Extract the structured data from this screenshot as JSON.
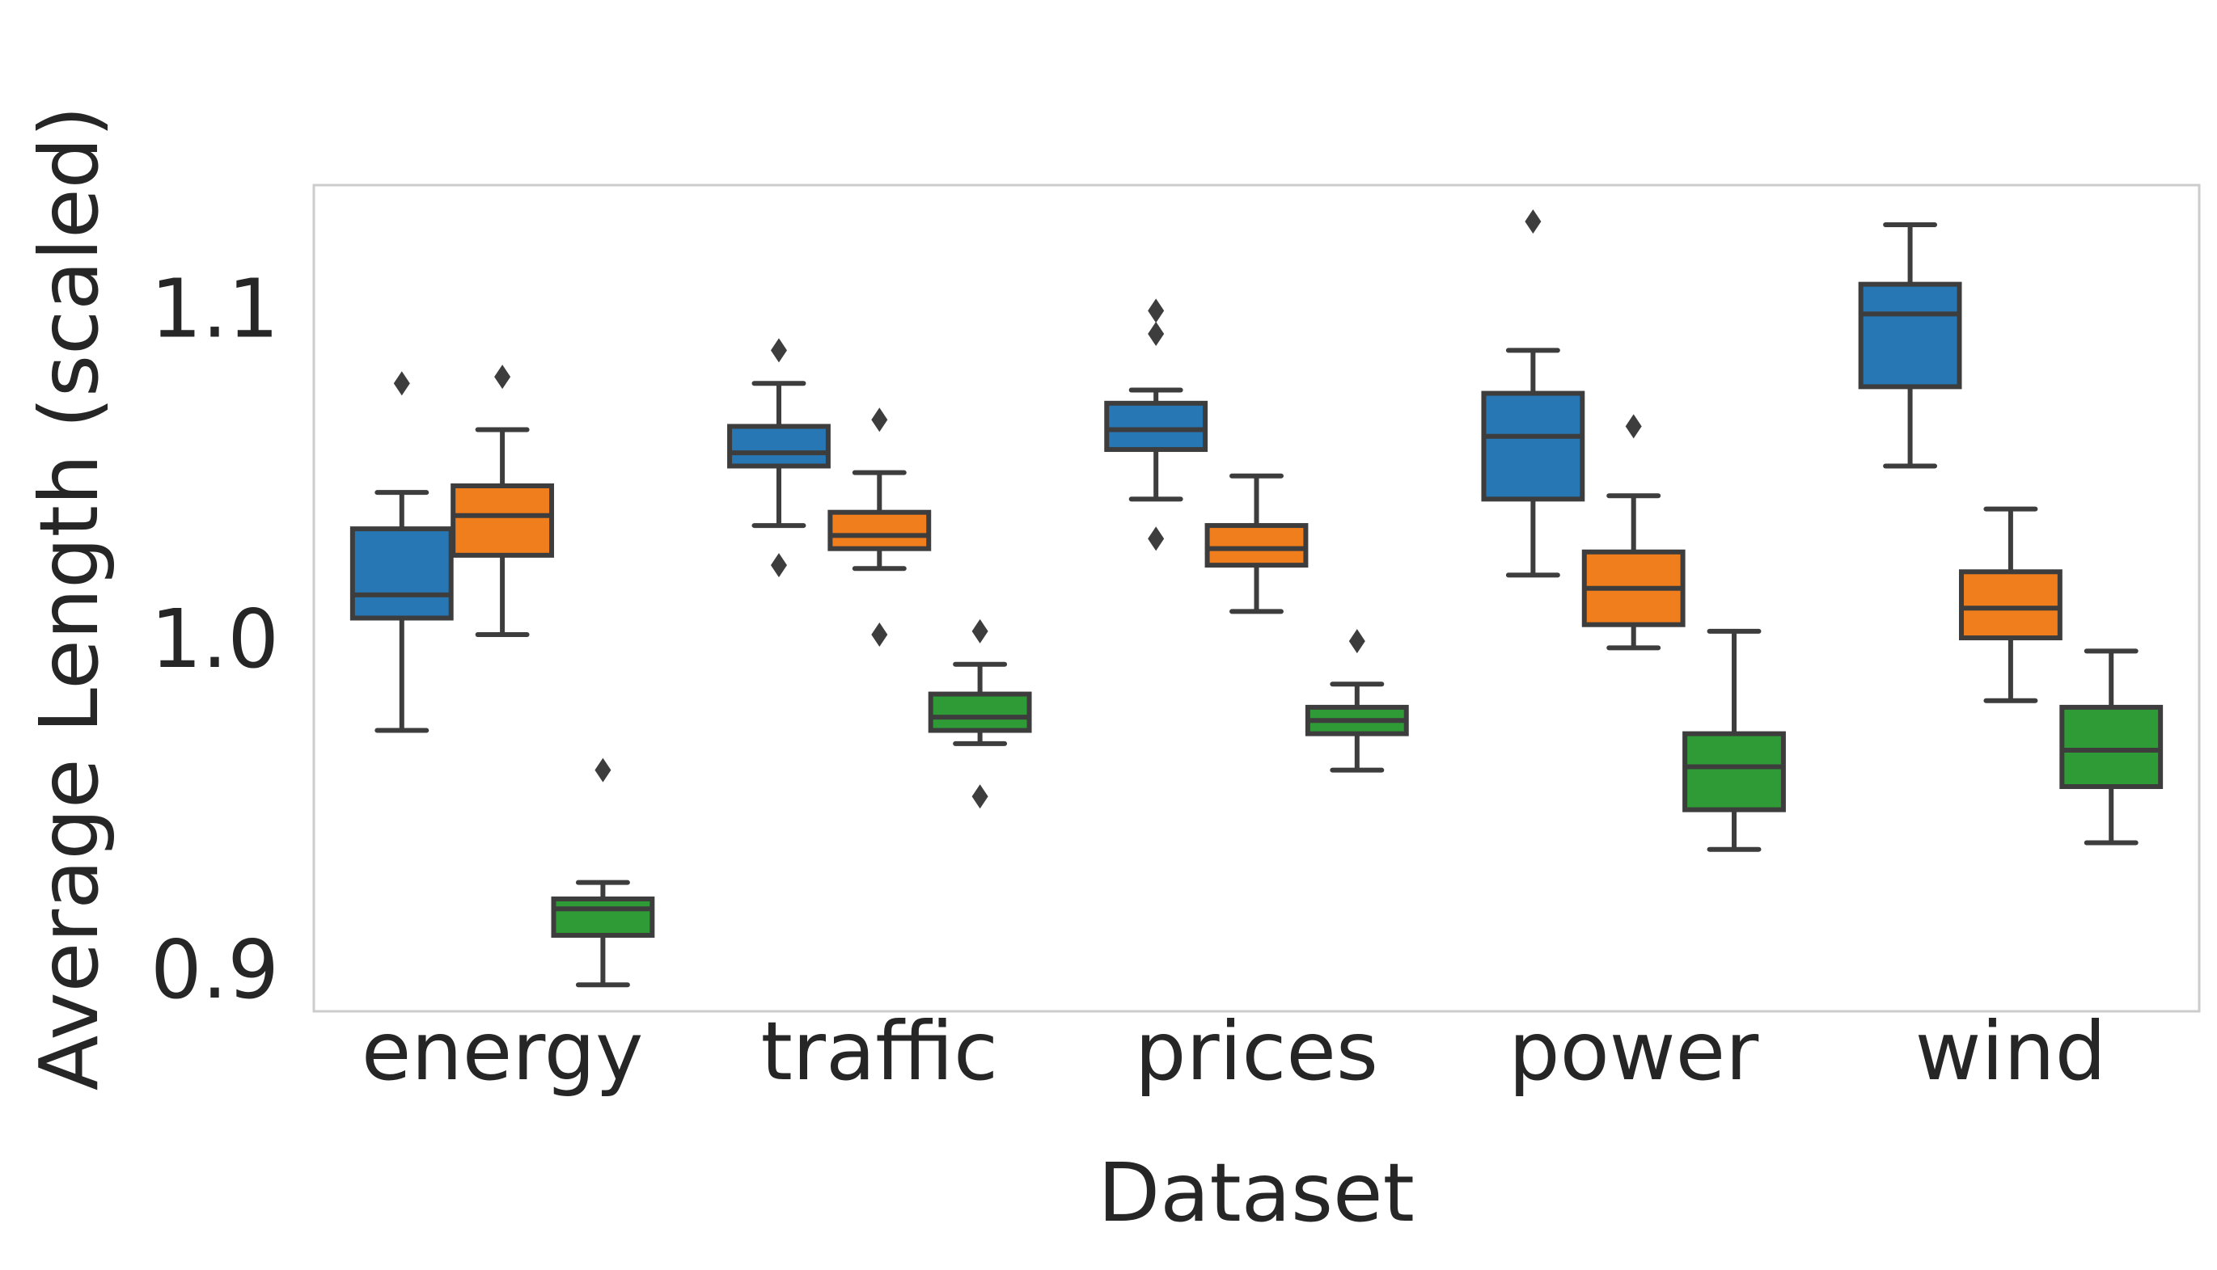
{
  "chart_data": {
    "type": "box",
    "xlabel": "Dataset",
    "ylabel": "Average Length (scaled)",
    "ylim": [
      0.887,
      1.137
    ],
    "yticks": [
      "0.9",
      "1.0",
      "1.1"
    ],
    "categories": [
      "energy",
      "traffic",
      "prices",
      "power",
      "wind"
    ],
    "grid": false,
    "colors": [
      "#2677b4",
      "#f07e1d",
      "#2e9b36"
    ],
    "edge_color": "#3d3d3d",
    "series": [
      {
        "color": "#2677b4",
        "boxes": [
          {
            "whislo": 0.972,
            "q1": 1.006,
            "med": 1.013,
            "q3": 1.033,
            "whishi": 1.044,
            "fliers": [
              1.077
            ]
          },
          {
            "whislo": 1.034,
            "q1": 1.052,
            "med": 1.056,
            "q3": 1.064,
            "whishi": 1.077,
            "fliers": [
              1.022,
              1.087
            ]
          },
          {
            "whislo": 1.042,
            "q1": 1.057,
            "med": 1.063,
            "q3": 1.071,
            "whishi": 1.075,
            "fliers": [
              1.03,
              1.092,
              1.099
            ]
          },
          {
            "whislo": 1.019,
            "q1": 1.042,
            "med": 1.061,
            "q3": 1.074,
            "whishi": 1.087,
            "fliers": [
              1.126
            ]
          },
          {
            "whislo": 1.052,
            "q1": 1.076,
            "med": 1.098,
            "q3": 1.107,
            "whishi": 1.125,
            "fliers": []
          }
        ]
      },
      {
        "color": "#f07e1d",
        "boxes": [
          {
            "whislo": 1.001,
            "q1": 1.025,
            "med": 1.037,
            "q3": 1.046,
            "whishi": 1.063,
            "fliers": [
              1.079
            ]
          },
          {
            "whislo": 1.021,
            "q1": 1.027,
            "med": 1.031,
            "q3": 1.038,
            "whishi": 1.05,
            "fliers": [
              1.001,
              1.066
            ]
          },
          {
            "whislo": 1.008,
            "q1": 1.022,
            "med": 1.027,
            "q3": 1.034,
            "whishi": 1.049,
            "fliers": []
          },
          {
            "whislo": 0.997,
            "q1": 1.004,
            "med": 1.015,
            "q3": 1.026,
            "whishi": 1.043,
            "fliers": [
              1.064
            ]
          },
          {
            "whislo": 0.981,
            "q1": 1.0,
            "med": 1.009,
            "q3": 1.02,
            "whishi": 1.039,
            "fliers": []
          }
        ]
      },
      {
        "color": "#2e9b36",
        "boxes": [
          {
            "whislo": 0.895,
            "q1": 0.91,
            "med": 0.918,
            "q3": 0.921,
            "whishi": 0.926,
            "fliers": [
              0.96
            ]
          },
          {
            "whislo": 0.968,
            "q1": 0.972,
            "med": 0.976,
            "q3": 0.983,
            "whishi": 0.992,
            "fliers": [
              0.952,
              1.002
            ]
          },
          {
            "whislo": 0.96,
            "q1": 0.971,
            "med": 0.975,
            "q3": 0.979,
            "whishi": 0.986,
            "fliers": [
              0.999
            ]
          },
          {
            "whislo": 0.936,
            "q1": 0.948,
            "med": 0.961,
            "q3": 0.971,
            "whishi": 1.002,
            "fliers": []
          },
          {
            "whislo": 0.938,
            "q1": 0.955,
            "med": 0.966,
            "q3": 0.979,
            "whishi": 0.996,
            "fliers": []
          }
        ]
      }
    ]
  }
}
